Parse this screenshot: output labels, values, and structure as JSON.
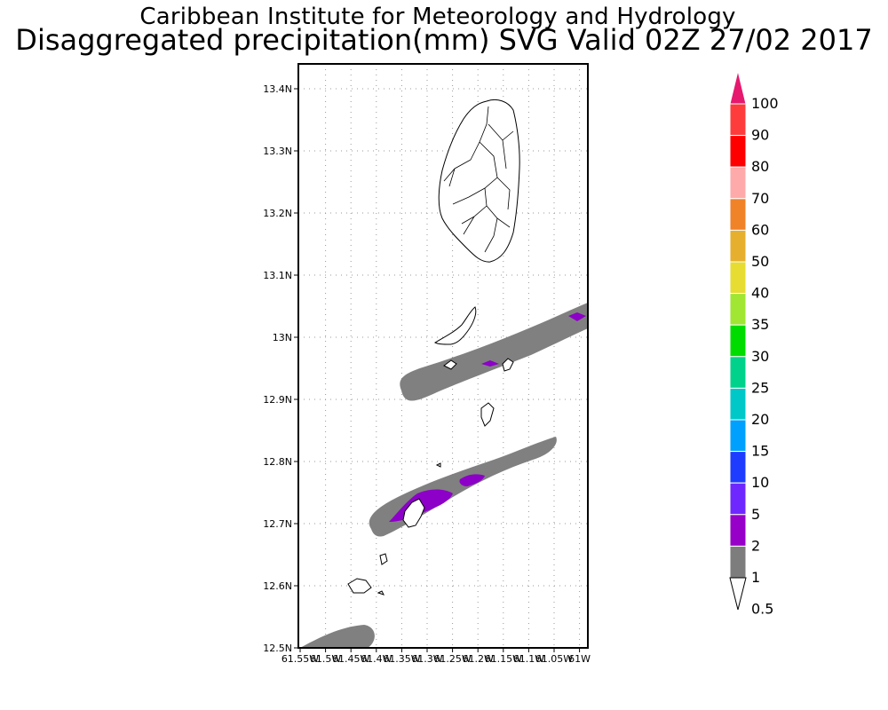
{
  "header": {
    "title": "Caribbean Institute for Meteorology and Hydrology",
    "subtitle": "Disaggregated precipitation(mm) SVG Valid 02Z 27/02 2017"
  },
  "map": {
    "lat_labels": [
      "13.4N",
      "13.3N",
      "13.2N",
      "13.1N",
      "13N",
      "12.9N",
      "12.8N",
      "12.7N",
      "12.6N",
      "12.5N"
    ],
    "lon_labels": [
      "61.55W",
      "61.5W",
      "61.45W",
      "61.4W",
      "61.35W",
      "61.3W",
      "61.25W",
      "61.2W",
      "61.15W",
      "61.1W",
      "61.05W",
      "61W"
    ]
  },
  "colorbar": {
    "labels": [
      "100",
      "90",
      "80",
      "70",
      "60",
      "50",
      "40",
      "35",
      "30",
      "25",
      "20",
      "15",
      "10",
      "5",
      "2",
      "1",
      "0.5"
    ],
    "colors": [
      "#ff3c3c",
      "#ff0000",
      "#ffaaaa",
      "#f08228",
      "#e6af2d",
      "#e6dc32",
      "#a0e632",
      "#00dc00",
      "#00d28c",
      "#00c8c8",
      "#00a0ff",
      "#1e3cff",
      "#6e28ff",
      "#9600c8",
      "#7d7d7d"
    ],
    "top_color": "#e6196e"
  }
}
